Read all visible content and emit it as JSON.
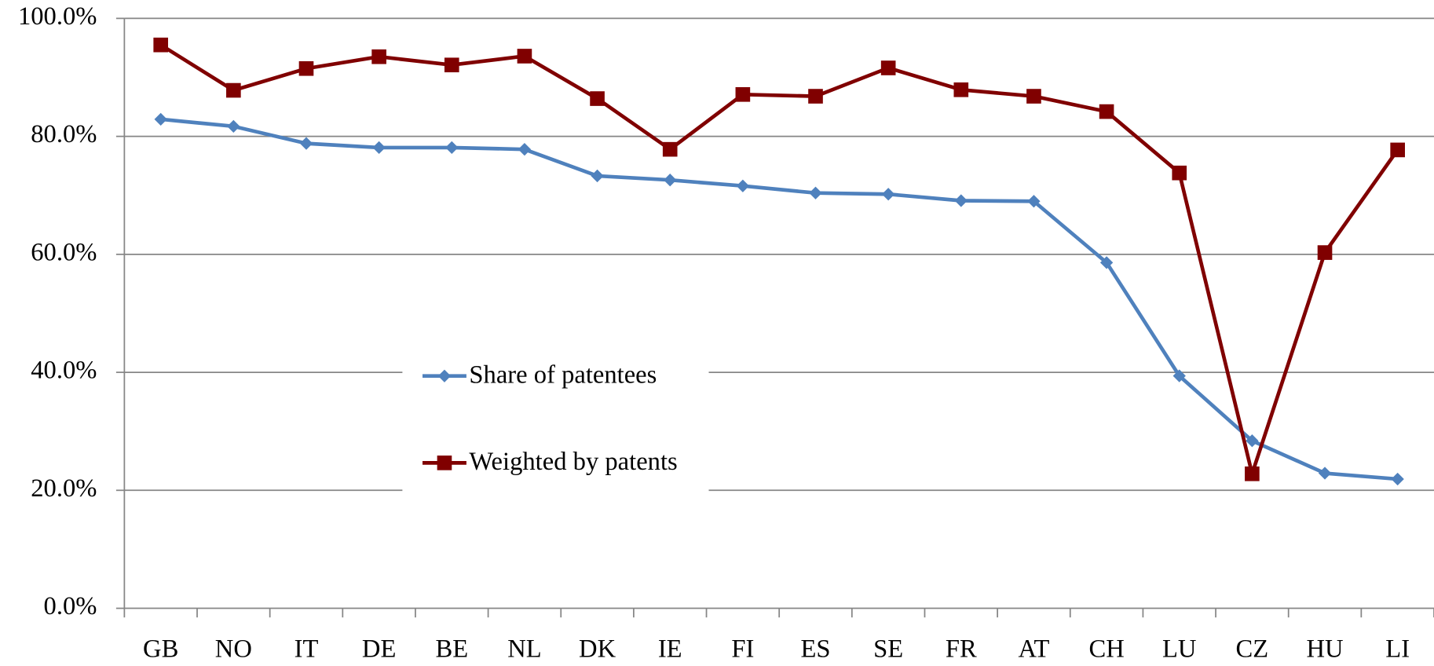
{
  "chart_data": {
    "type": "line",
    "categories": [
      "GB",
      "NO",
      "IT",
      "DE",
      "BE",
      "NL",
      "DK",
      "IE",
      "FI",
      "ES",
      "SE",
      "FR",
      "AT",
      "CH",
      "LU",
      "CZ",
      "HU",
      "LI"
    ],
    "series": [
      {
        "name": "Share of patentees",
        "color": "#4f81bd",
        "marker": "diamond",
        "values": [
          82.9,
          81.7,
          78.8,
          78.1,
          78.1,
          77.8,
          73.3,
          72.6,
          71.6,
          70.4,
          70.2,
          69.1,
          69.0,
          58.6,
          39.4,
          28.4,
          22.9,
          21.9
        ]
      },
      {
        "name": "Weighted by patents",
        "color": "#800000",
        "marker": "square",
        "values": [
          95.5,
          87.8,
          91.5,
          93.5,
          92.1,
          93.6,
          86.4,
          77.8,
          87.1,
          86.8,
          91.6,
          87.9,
          86.8,
          84.2,
          73.8,
          22.8,
          60.3,
          77.7
        ]
      }
    ],
    "ylim": [
      0,
      100
    ],
    "yticks": [
      {
        "value": 0,
        "label": "0.0%"
      },
      {
        "value": 20,
        "label": "20.0%"
      },
      {
        "value": 40,
        "label": "40.0%"
      },
      {
        "value": 60,
        "label": "60.0%"
      },
      {
        "value": 80,
        "label": "80.0%"
      },
      {
        "value": 100,
        "label": "100.0%"
      }
    ],
    "grid": true,
    "legend_position": "center"
  }
}
